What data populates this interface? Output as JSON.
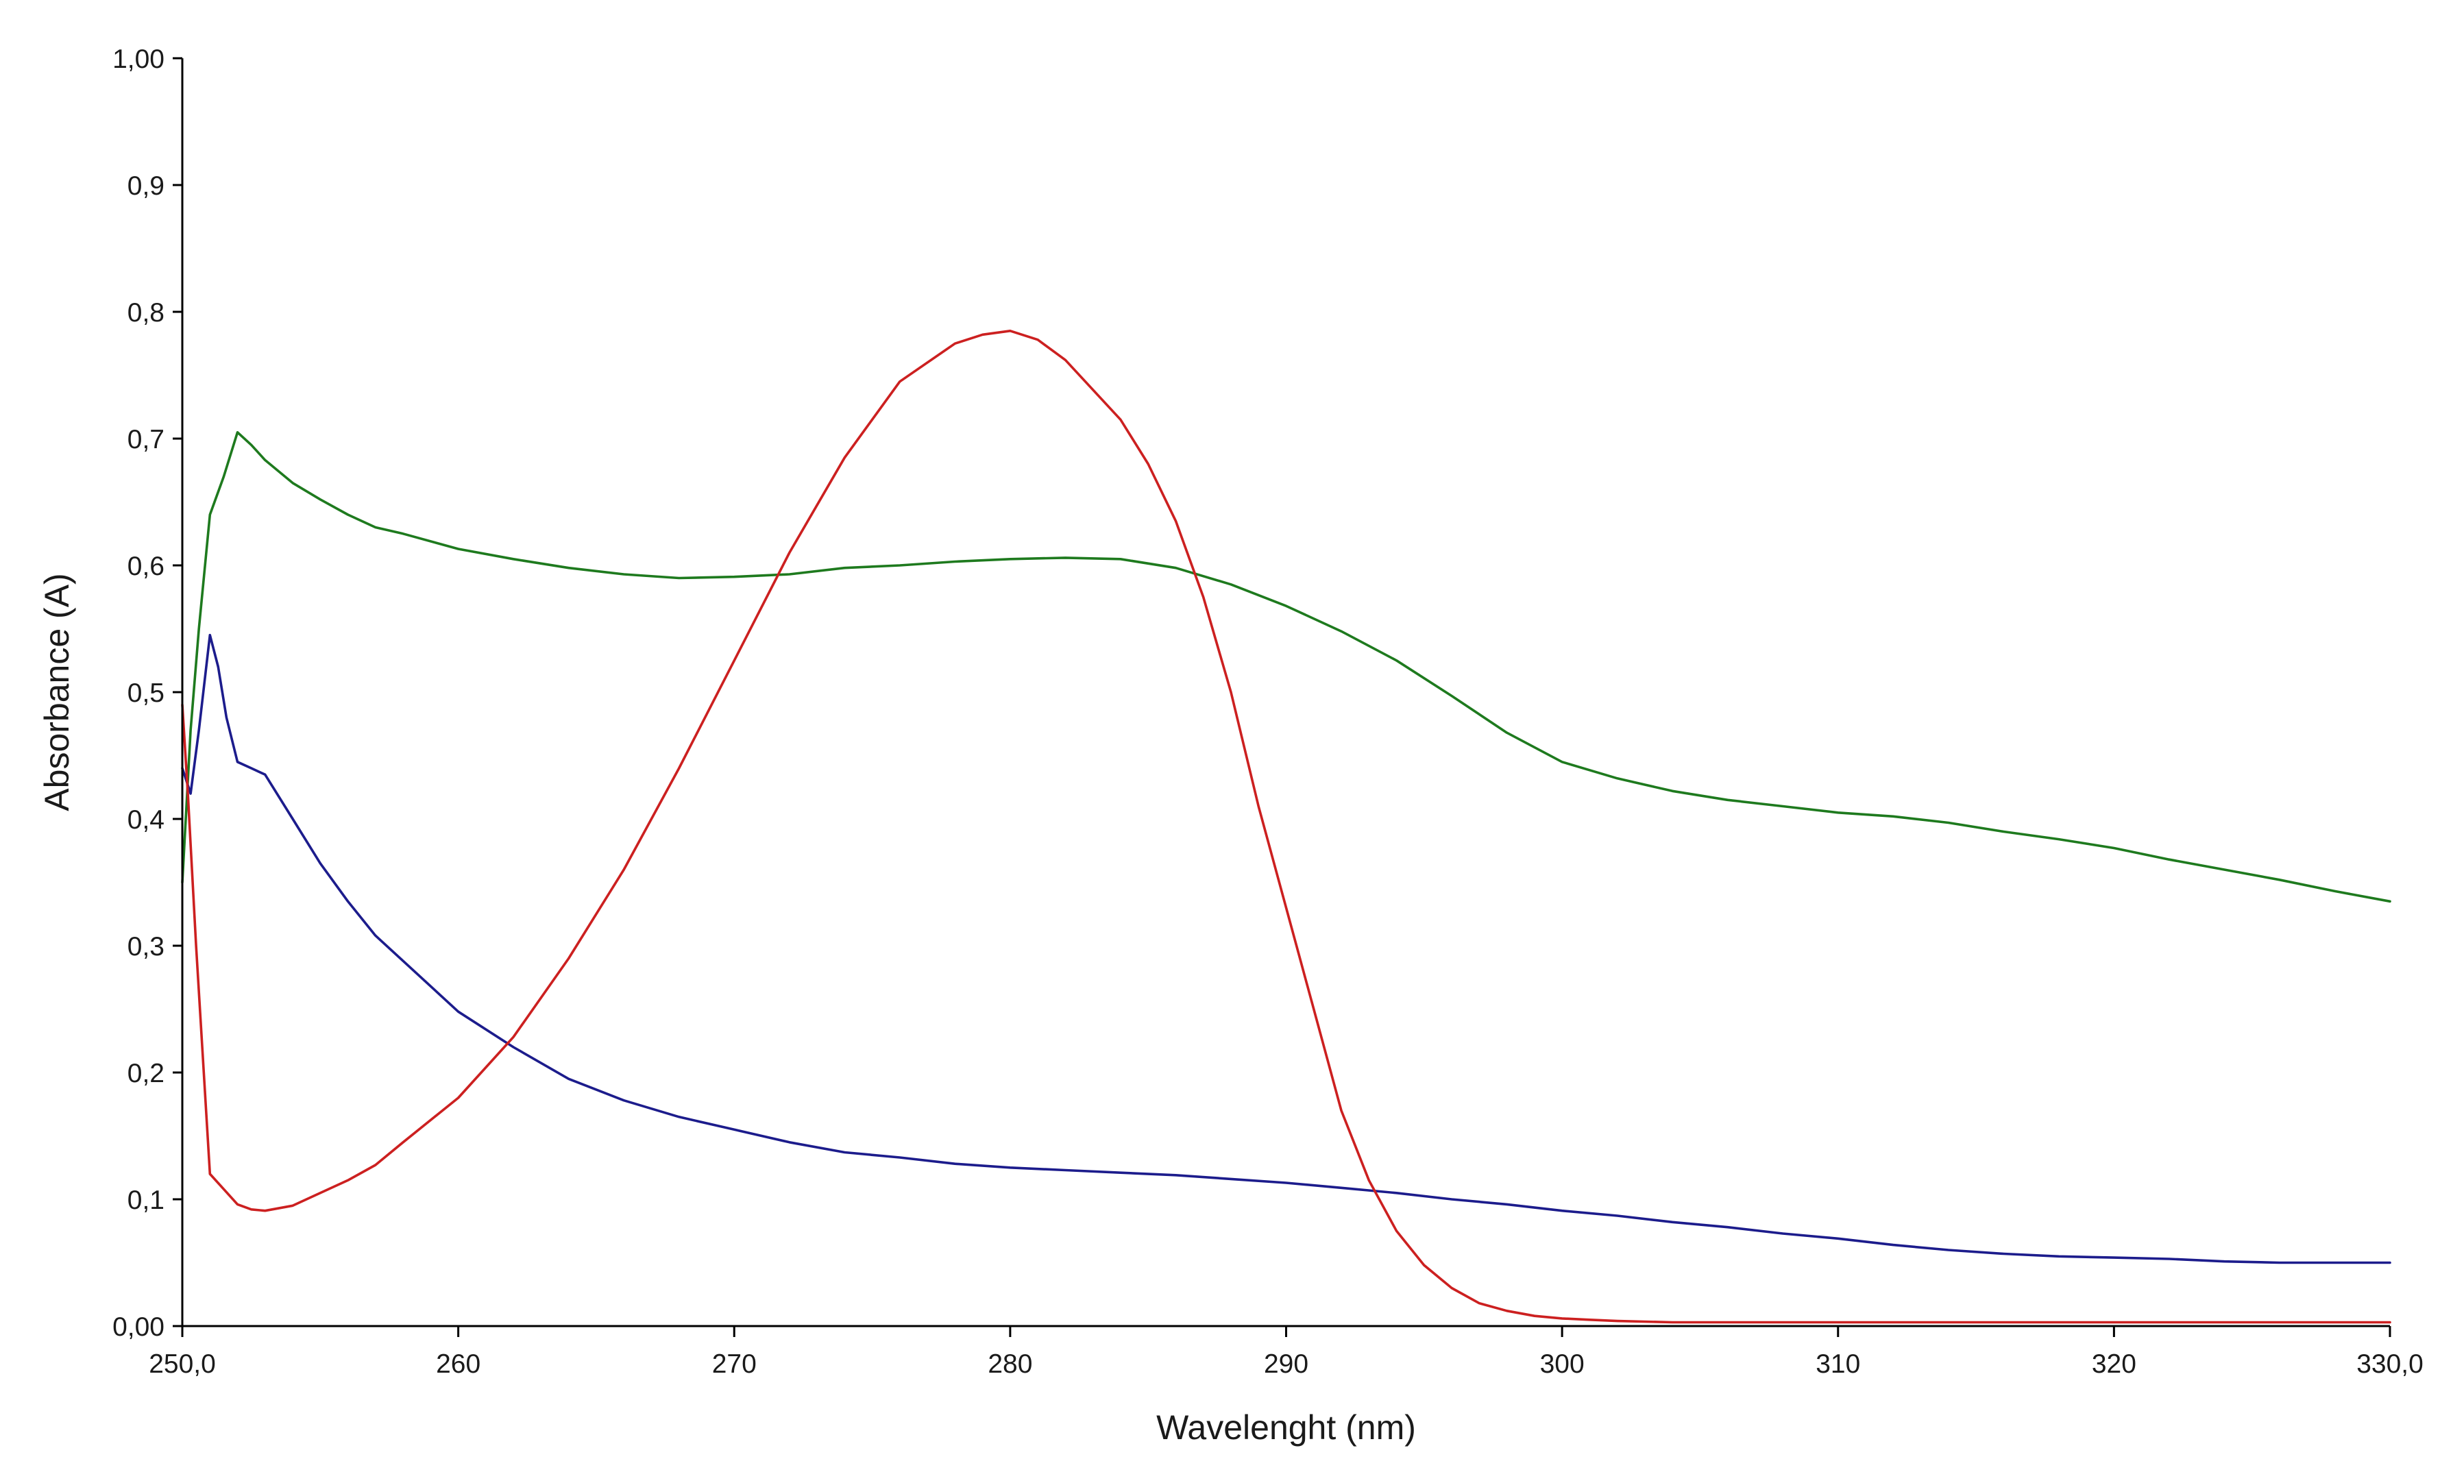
{
  "chart_data": {
    "type": "line",
    "title": "",
    "xlabel": "Wavelenght (nm)",
    "ylabel": "Absorbance (A)",
    "xlim": [
      250,
      330
    ],
    "ylim": [
      0,
      1
    ],
    "grid": false,
    "x_ticks": [
      250,
      260,
      270,
      280,
      290,
      300,
      310,
      320,
      330
    ],
    "x_tick_labels": [
      "250,0",
      "260",
      "270",
      "280",
      "290",
      "300",
      "310",
      "320",
      "330,0"
    ],
    "y_ticks": [
      0,
      0.1,
      0.2,
      0.3,
      0.4,
      0.5,
      0.6,
      0.7,
      0.8,
      0.9,
      1.0
    ],
    "y_tick_labels": [
      "0,00",
      "0,1",
      "0,2",
      "0,3",
      "0,4",
      "0,5",
      "0,6",
      "0,7",
      "0,8",
      "0,9",
      "1,00"
    ],
    "series": [
      {
        "name": "green",
        "color": "#1e7a1e",
        "x": [
          250.0,
          250.3,
          250.6,
          251.0,
          251.5,
          252.0,
          252.5,
          253.0,
          254.0,
          255.0,
          256.0,
          257.0,
          258.0,
          260.0,
          262.0,
          264.0,
          266.0,
          268.0,
          270.0,
          272.0,
          274.0,
          276.0,
          278.0,
          280.0,
          282.0,
          284.0,
          286.0,
          288.0,
          290.0,
          292.0,
          294.0,
          296.0,
          298.0,
          300.0,
          302.0,
          304.0,
          306.0,
          308.0,
          310.0,
          312.0,
          314.0,
          316.0,
          318.0,
          320.0,
          322.0,
          324.0,
          326.0,
          328.0,
          330.0
        ],
        "y": [
          0.35,
          0.47,
          0.55,
          0.64,
          0.67,
          0.705,
          0.695,
          0.683,
          0.665,
          0.652,
          0.64,
          0.63,
          0.625,
          0.613,
          0.605,
          0.598,
          0.593,
          0.59,
          0.591,
          0.593,
          0.598,
          0.6,
          0.603,
          0.605,
          0.606,
          0.605,
          0.598,
          0.585,
          0.568,
          0.548,
          0.525,
          0.497,
          0.468,
          0.445,
          0.432,
          0.422,
          0.415,
          0.41,
          0.405,
          0.402,
          0.397,
          0.39,
          0.384,
          0.377,
          0.368,
          0.36,
          0.352,
          0.343,
          0.335
        ]
      },
      {
        "name": "blue",
        "color": "#1c1c8c",
        "x": [
          250.0,
          250.3,
          250.6,
          251.0,
          251.3,
          251.6,
          252.0,
          252.5,
          253.0,
          254.0,
          255.0,
          256.0,
          257.0,
          258.0,
          260.0,
          262.0,
          264.0,
          266.0,
          268.0,
          270.0,
          272.0,
          274.0,
          276.0,
          278.0,
          280.0,
          282.0,
          284.0,
          286.0,
          288.0,
          290.0,
          292.0,
          294.0,
          296.0,
          298.0,
          300.0,
          302.0,
          304.0,
          306.0,
          308.0,
          310.0,
          312.0,
          314.0,
          316.0,
          318.0,
          320.0,
          322.0,
          324.0,
          326.0,
          328.0,
          330.0
        ],
        "y": [
          0.44,
          0.42,
          0.47,
          0.545,
          0.52,
          0.48,
          0.445,
          0.44,
          0.435,
          0.4,
          0.365,
          0.335,
          0.308,
          0.288,
          0.248,
          0.22,
          0.195,
          0.178,
          0.165,
          0.155,
          0.145,
          0.137,
          0.133,
          0.128,
          0.125,
          0.123,
          0.121,
          0.119,
          0.116,
          0.113,
          0.109,
          0.105,
          0.1,
          0.096,
          0.091,
          0.087,
          0.082,
          0.078,
          0.073,
          0.069,
          0.064,
          0.06,
          0.057,
          0.055,
          0.054,
          0.053,
          0.051,
          0.05,
          0.05,
          0.05
        ]
      },
      {
        "name": "red",
        "color": "#cc2020",
        "x": [
          250.0,
          250.2,
          250.5,
          251.0,
          251.5,
          252.0,
          252.5,
          253.0,
          254.0,
          255.0,
          256.0,
          257.0,
          258.0,
          260.0,
          262.0,
          264.0,
          266.0,
          268.0,
          270.0,
          272.0,
          274.0,
          276.0,
          278.0,
          279.0,
          280.0,
          281.0,
          282.0,
          284.0,
          285.0,
          286.0,
          287.0,
          288.0,
          289.0,
          290.0,
          291.0,
          292.0,
          293.0,
          294.0,
          295.0,
          296.0,
          297.0,
          298.0,
          299.0,
          300.0,
          301.0,
          302.0,
          304.0,
          306.0,
          310.0,
          316.0,
          322.0,
          330.0
        ],
        "y": [
          0.49,
          0.42,
          0.3,
          0.12,
          0.108,
          0.096,
          0.092,
          0.091,
          0.095,
          0.105,
          0.115,
          0.127,
          0.145,
          0.18,
          0.228,
          0.29,
          0.36,
          0.44,
          0.525,
          0.61,
          0.685,
          0.745,
          0.775,
          0.782,
          0.785,
          0.778,
          0.762,
          0.715,
          0.68,
          0.635,
          0.575,
          0.5,
          0.41,
          0.33,
          0.25,
          0.17,
          0.115,
          0.075,
          0.048,
          0.03,
          0.018,
          0.012,
          0.008,
          0.006,
          0.005,
          0.004,
          0.003,
          0.003,
          0.003,
          0.003,
          0.003,
          0.003
        ]
      }
    ]
  }
}
